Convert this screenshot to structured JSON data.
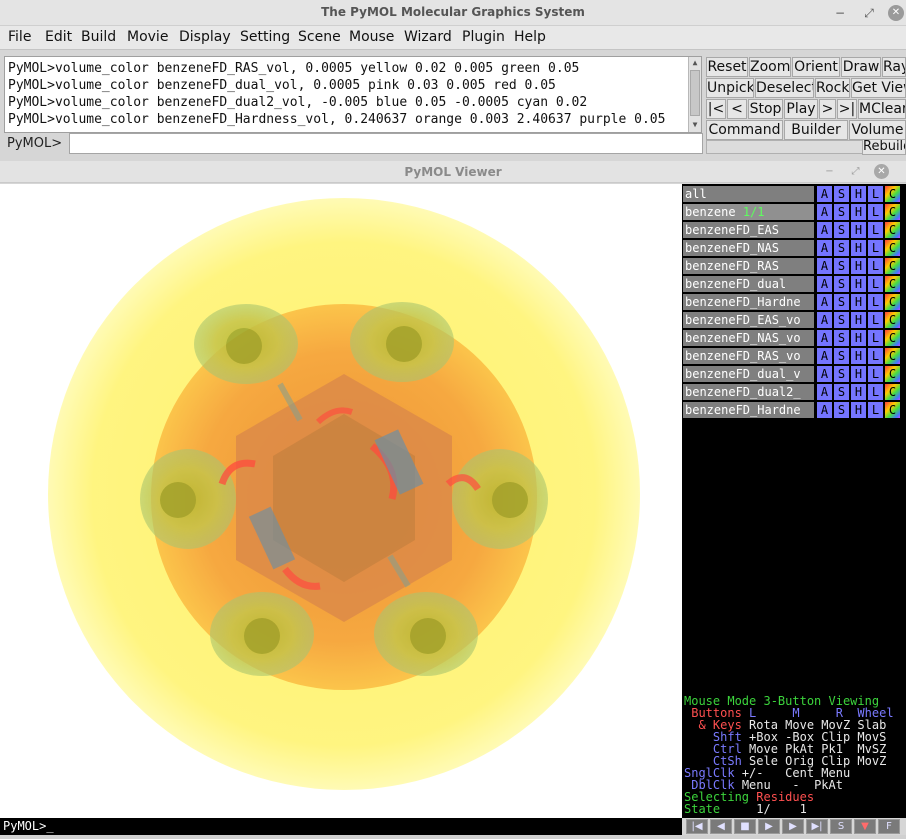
{
  "window": {
    "title": "The PyMOL Molecular Graphics System",
    "minimize": "−",
    "restore": "⤢",
    "close": "✕"
  },
  "menu": [
    "File",
    "Edit",
    "Build",
    "Movie",
    "Display",
    "Setting",
    "Scene",
    "Mouse",
    "Wizard",
    "Plugin",
    "Help"
  ],
  "console_lines": [
    "PyMOL>volume_color benzeneFD_RAS_vol, 0.0005 yellow 0.02 0.005 green 0.05",
    "PyMOL>volume_color benzeneFD_dual_vol, 0.0005 pink 0.03 0.005 red 0.05",
    "PyMOL>volume_color benzeneFD_dual2_vol, -0.005 blue 0.05 -0.0005 cyan 0.02",
    "PyMOL>volume_color benzeneFD_Hardness_vol, 0.240637 orange 0.003 2.40637 purple 0.05"
  ],
  "prompt_label": "PyMOL>",
  "command_value": "",
  "buttons": {
    "row1": [
      "Reset",
      "Zoom",
      "Orient",
      "Draw",
      "Ray"
    ],
    "row2": [
      "Unpick",
      "Deselect",
      "Rock",
      "Get View"
    ],
    "row3": [
      "|<",
      "<",
      "Stop",
      "Play",
      ">",
      ">|",
      "MClear"
    ],
    "row4": [
      "Command",
      "Builder",
      "Volume"
    ],
    "rebuild": "Rebuild"
  },
  "viewer_title": "PyMOL Viewer",
  "objects": [
    {
      "name": "all",
      "state": ""
    },
    {
      "name": "benzene",
      "state": "1/1"
    },
    {
      "name": "benzeneFD_EAS",
      "state": ""
    },
    {
      "name": "benzeneFD_NAS",
      "state": ""
    },
    {
      "name": "benzeneFD_RAS",
      "state": ""
    },
    {
      "name": "benzeneFD_dual",
      "state": ""
    },
    {
      "name": "benzeneFD_Hardne",
      "state": ""
    },
    {
      "name": "benzeneFD_EAS_vo",
      "state": ""
    },
    {
      "name": "benzeneFD_NAS_vo",
      "state": ""
    },
    {
      "name": "benzeneFD_RAS_vo",
      "state": ""
    },
    {
      "name": "benzeneFD_dual_v",
      "state": ""
    },
    {
      "name": "benzeneFD_dual2_",
      "state": ""
    },
    {
      "name": "benzeneFD_Hardne",
      "state": ""
    }
  ],
  "obj_buttons": [
    "A",
    "S",
    "H",
    "L",
    "C"
  ],
  "mouse_mode": {
    "title_a": "Mouse Mode",
    "title_b": "3-Button Viewing",
    "buttons_label": "Buttons",
    "cols": "L     M     R  Wheel",
    "keys_label": "& Keys",
    "rows": [
      {
        "key": "",
        "vals": "Rota Move MovZ Slab"
      },
      {
        "key": "Shft",
        "vals": "+Box -Box Clip MovS"
      },
      {
        "key": "Ctrl",
        "vals": "Move PkAt Pk1  MvSZ"
      },
      {
        "key": "CtSh",
        "vals": "Sele Orig Clip MovZ"
      },
      {
        "key": "SnglClk",
        "vals": "+/-   Cent Menu"
      },
      {
        "key": "DblClk",
        "vals": "Menu   -  PkAt"
      }
    ],
    "selecting_a": "Selecting",
    "selecting_b": "Residues",
    "state_label": "State",
    "state_value": "1/    1"
  },
  "status_prompt": "PyMOL>_",
  "movie_controls": [
    "|◀",
    "◀",
    "■",
    "▶",
    "▶",
    "▶|",
    "S",
    "▼",
    "F"
  ]
}
